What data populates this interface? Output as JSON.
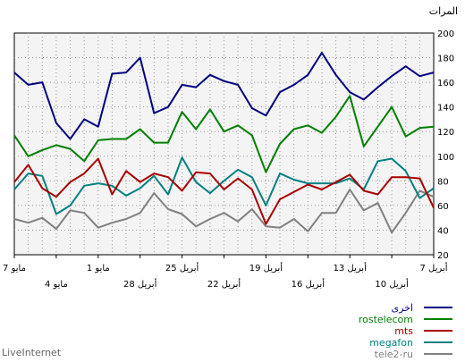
{
  "chart_data": {
    "type": "line",
    "ylabel": "المرات",
    "ylim": [
      20,
      200
    ],
    "y_ticks": [
      20,
      40,
      60,
      80,
      100,
      120,
      140,
      160,
      180,
      200
    ],
    "x_ticks_row1": [
      "7 مايو",
      "1 مايو",
      "25 أبريل",
      "19 أبريل",
      "13 أبريل",
      "7 أبريل"
    ],
    "x_ticks_row2": [
      "4 مايو",
      "28 أبريل",
      "22 أبريل",
      "16 أبريل",
      "10 أبريل"
    ],
    "grid": true,
    "legend_position": "bottom-right",
    "series": [
      {
        "name": "اخرى",
        "color": "#000080",
        "values": [
          168,
          158,
          160,
          127,
          114,
          130,
          124,
          167,
          168,
          180,
          135,
          140,
          158,
          156,
          166,
          161,
          158,
          139,
          133,
          152,
          158,
          166,
          184,
          166,
          152,
          146,
          156,
          165,
          173,
          165,
          168
        ]
      },
      {
        "name": "rostelecom",
        "color": "#008000",
        "values": [
          117,
          100,
          105,
          109,
          106,
          96,
          113,
          114,
          114,
          122,
          111,
          111,
          136,
          122,
          138,
          120,
          125,
          117,
          87,
          110,
          122,
          125,
          119,
          132,
          149,
          108,
          124,
          140,
          116,
          123,
          124
        ]
      },
      {
        "name": "mts",
        "color": "#aa0000",
        "values": [
          79,
          93,
          74,
          67,
          79,
          86,
          98,
          69,
          88,
          79,
          86,
          83,
          72,
          87,
          86,
          73,
          82,
          73,
          45,
          65,
          71,
          77,
          73,
          79,
          85,
          72,
          69,
          83,
          83,
          82,
          58
        ]
      },
      {
        "name": "megafon",
        "color": "#008080",
        "values": [
          73,
          86,
          84,
          53,
          60,
          76,
          78,
          76,
          68,
          74,
          84,
          69,
          99,
          79,
          70,
          80,
          89,
          83,
          60,
          86,
          81,
          78,
          78,
          78,
          82,
          73,
          96,
          98,
          88,
          66,
          74
        ]
      },
      {
        "name": "tele2-ru",
        "color": "#808080",
        "values": [
          49,
          46,
          50,
          41,
          56,
          54,
          42,
          46,
          49,
          54,
          70,
          57,
          53,
          43,
          49,
          54,
          47,
          57,
          43,
          42,
          49,
          39,
          54,
          54,
          73,
          56,
          62,
          38,
          54,
          72,
          67
        ]
      }
    ]
  },
  "footer": {
    "credit": "LiveInternet"
  }
}
